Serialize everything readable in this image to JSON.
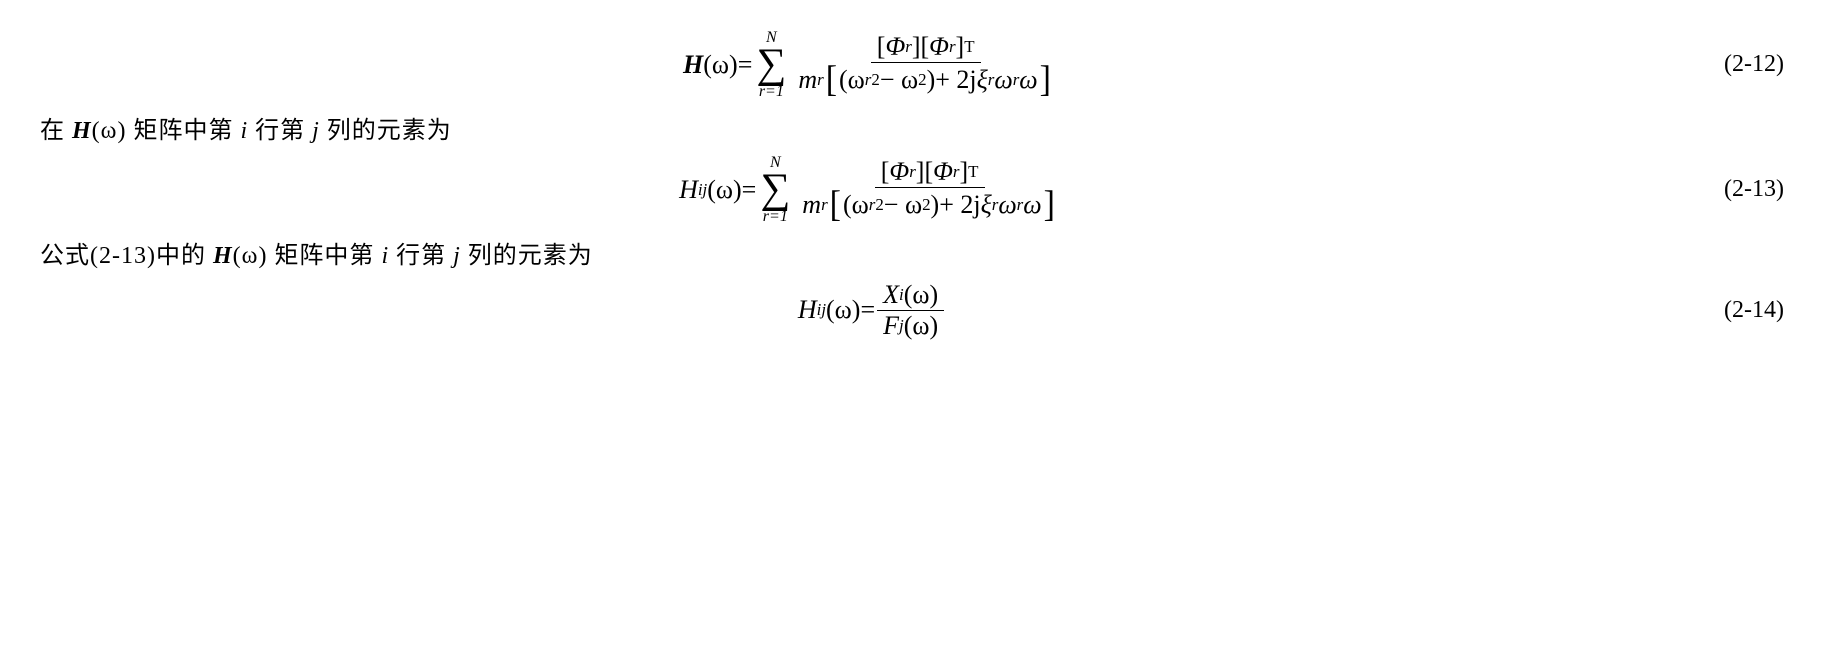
{
  "eq1": {
    "lhs_H": "H",
    "lhs_arg": "(ω)",
    "eq": " = ",
    "sum_top": "N",
    "sum_bot": "r=1",
    "num_phi1": "Φ",
    "num_sub1": "r",
    "num_phi2": "Φ",
    "num_sub2": "r",
    "num_sup": "T",
    "den_m": "m",
    "den_m_sub": "r",
    "den_inner1": "(ω",
    "den_inner1_sub": "r",
    "den_inner1_sup": "2",
    "den_inner2": " − ω",
    "den_inner2_sup": "2",
    "den_inner3": ")",
    "den_plus": " + 2j",
    "den_xi": "ξ",
    "den_xi_sub": "r",
    "den_om": "ω",
    "den_om_sub": "r",
    "den_om2": "ω",
    "number": "(2-12)"
  },
  "text1": {
    "pre": "在 ",
    "H": "H",
    "arg": "(ω)",
    "mid1": " 矩阵中第 ",
    "i": "i",
    "mid2": " 行第 ",
    "j": "j",
    "post": " 列的元素为"
  },
  "eq2": {
    "lhs_H": "H",
    "lhs_sub": "ij",
    "lhs_arg": "(ω)",
    "eq": " = ",
    "sum_top": "N",
    "sum_bot": "r=1",
    "num_phi1": "Φ",
    "num_sub1": "r",
    "num_phi2": "Φ",
    "num_sub2": "r",
    "num_sup": "T",
    "den_m": "m",
    "den_m_sub": "r",
    "den_inner1": "(ω",
    "den_inner1_sub": "r",
    "den_inner1_sup": "2",
    "den_inner2": " − ω",
    "den_inner2_sup": "2",
    "den_inner3": ")",
    "den_plus": " + 2j",
    "den_xi": "ξ",
    "den_xi_sub": "r",
    "den_om": "ω",
    "den_om_sub": "r",
    "den_om2": "ω",
    "number": "(2-13)"
  },
  "text2": {
    "pre": "公式(2-13)中的 ",
    "H": "H",
    "arg": "(ω)",
    "mid1": " 矩阵中第 ",
    "i": "i",
    "mid2": " 行第 ",
    "j": "j",
    "post": " 列的元素为"
  },
  "eq3": {
    "lhs_H": "H",
    "lhs_sub": "ij",
    "lhs_arg": "(ω)",
    "eq": " = ",
    "num_X": "X",
    "num_X_sub": "i",
    "num_arg": "(ω)",
    "den_F": "F",
    "den_F_sub": "j",
    "den_arg": "(ω)",
    "number": "(2-14)"
  }
}
